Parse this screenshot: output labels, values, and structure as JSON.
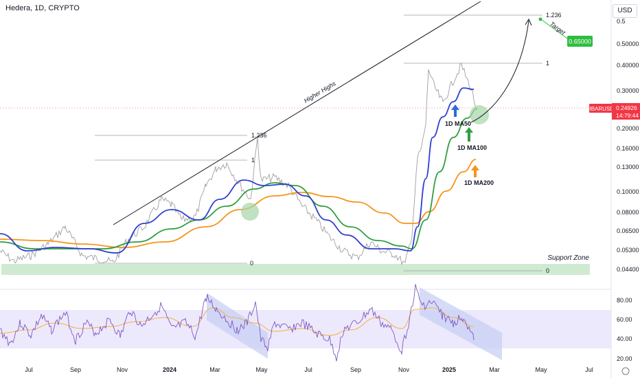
{
  "header": {
    "title": "Hedera, 1D, CRYPTO",
    "currency": "USD"
  },
  "chart_data": {
    "type": "line",
    "price_axis": {
      "scale": "log",
      "ticks": [
        "0.50000",
        "0.40000",
        "0.30000",
        "0.20000",
        "0.16000",
        "0.13000",
        "0.10000",
        "0.08000",
        "0.06500",
        "0.05300",
        "0.04400"
      ],
      "top_tick_partial": "0.5"
    },
    "rsi_axis": {
      "ticks": [
        "80.00",
        "60.00",
        "40.00",
        "20.00"
      ]
    },
    "time_axis": {
      "ticks": [
        "Jul",
        "Sep",
        "Nov",
        "2024",
        "Mar",
        "May",
        "Jul",
        "Sep",
        "Nov",
        "2025",
        "Mar",
        "May",
        "Jul"
      ]
    },
    "symbol": {
      "name": "HBARUSD",
      "price": "0.24926",
      "countdown": "14:79:44",
      "color": "#f23645"
    },
    "target": {
      "label": "Target",
      "value": "0.65000",
      "color": "#2ebd40"
    },
    "fib_levels": [
      {
        "label": "1.236",
        "group": "first"
      },
      {
        "label": "1",
        "group": "first"
      },
      {
        "label": "0",
        "group": "first"
      },
      {
        "label": "1.236",
        "group": "second"
      },
      {
        "label": "1",
        "group": "second"
      },
      {
        "label": "0",
        "group": "second"
      }
    ],
    "annotations": {
      "higher_highs": "Higher Highs",
      "support_zone": "Support Zone",
      "ma50": "1D MA50",
      "ma100": "1D MA100",
      "ma200": "1D MA200"
    },
    "series": [
      {
        "name": "1D MA50",
        "color": "#2f3fd0"
      },
      {
        "name": "1D MA100",
        "color": "#2f9e3f"
      },
      {
        "name": "1D MA200",
        "color": "#f7931a"
      }
    ],
    "colors": {
      "price": "#9e9e9e",
      "rsi": "#7e57c2",
      "rsi_ma": "#f5b041",
      "support": "#c8e6c9",
      "rsi_band": "#e8e4fb",
      "channel": "#c5cdf3"
    }
  }
}
